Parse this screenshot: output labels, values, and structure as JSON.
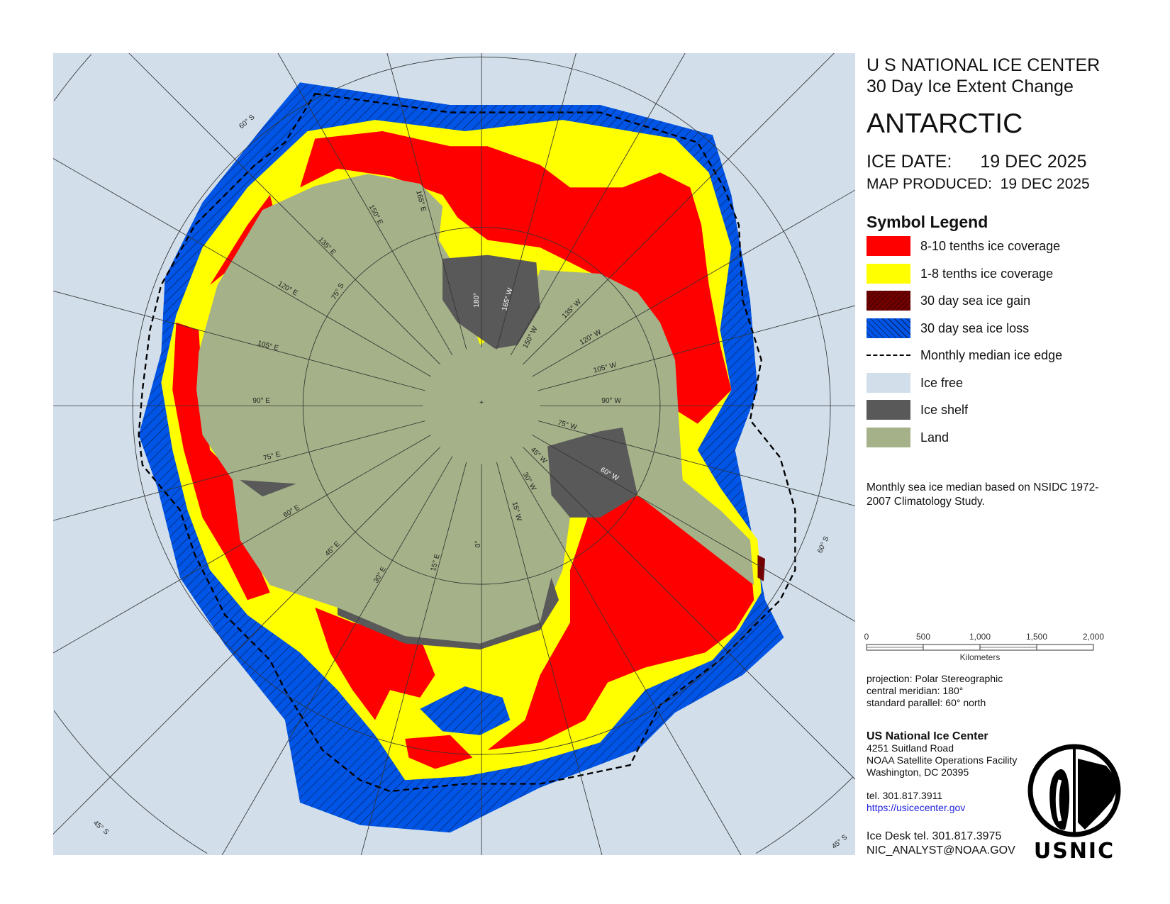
{
  "header": {
    "agency": "U S NATIONAL ICE CENTER",
    "product": "30 Day Ice Extent Change",
    "region": "ANTARCTIC",
    "ice_date_label": "ICE DATE:",
    "ice_date": "19 DEC 2025",
    "map_produced_label": "MAP PRODUCED:",
    "map_produced": "19 DEC 2025"
  },
  "legend": {
    "title": "Symbol Legend",
    "items": [
      {
        "label": "8-10 tenths ice coverage",
        "color": "#ff0000"
      },
      {
        "label": "1-8 tenths ice coverage",
        "color": "#ffff00"
      },
      {
        "label": "30 day sea ice gain",
        "color": "#730000"
      },
      {
        "label": "30 day sea ice loss",
        "color": "#0055e6"
      },
      {
        "label": "Monthly median ice edge",
        "color": "#000000"
      },
      {
        "label": "Ice free",
        "color": "#d2dfeb"
      },
      {
        "label": "Ice shelf",
        "color": "#595959"
      },
      {
        "label": "Land",
        "color": "#a5b188"
      }
    ]
  },
  "note": "Monthly sea ice median based on NSIDC 1972-2007 Climatology Study.",
  "scale_bar": {
    "ticks": [
      "0",
      "500",
      "1,000",
      "1,500",
      "2,000"
    ],
    "unit": "Kilometers"
  },
  "projection": {
    "line1": "projection: Polar Stereographic",
    "line2": "central meridian: 180°",
    "line3": "standard parallel:  60° north"
  },
  "contact": {
    "name": "US National Ice Center",
    "street": "4251 Suitland Road",
    "facility": "NOAA Satellite Operations Facility",
    "city": "Washington, DC  20395",
    "tel": "tel. 301.817.3911",
    "url": "https://usicecenter.gov",
    "desk_tel": "Ice Desk tel. 301.817.3975",
    "email": "NIC_ANALYST@NOAA.GOV"
  },
  "logo": {
    "text": "USNIC"
  },
  "graticule": {
    "meridians_east": [
      "15° E",
      "30° E",
      "45° E",
      "60° E",
      "75° E",
      "90° E",
      "105° E",
      "120° E",
      "135° E",
      "150° E",
      "165° E"
    ],
    "meridians_west": [
      "15° W",
      "30° W",
      "45° W",
      "60° W",
      "75° W",
      "90° W",
      "105° W",
      "120° W",
      "135° W",
      "150° W",
      "165° W"
    ],
    "prime": "0°",
    "antimeridian": "180°",
    "parallels": [
      "75° S",
      "60° S",
      "60° S",
      "45° S",
      "45° S"
    ]
  }
}
